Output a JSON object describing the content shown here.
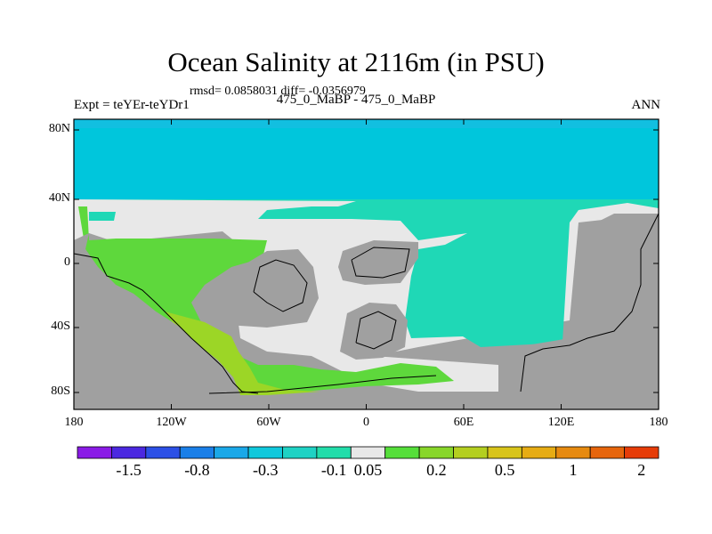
{
  "title": "Ocean Salinity at 2116m (in PSU)",
  "stats": "rmsd= 0.0858031 diff= -0.0356979",
  "experiment": "Expt = teYEr-teYDr1",
  "period": "475_0_MaBP - 475_0_MaBP",
  "season": "ANN",
  "y_ticks": [
    "80N",
    "40N",
    "0",
    "40S",
    "80S"
  ],
  "x_ticks": [
    "180",
    "120W",
    "60W",
    "0",
    "60E",
    "120E",
    "180"
  ],
  "legend": {
    "labels": [
      "-1.5",
      "-0.8",
      "-0.3",
      "-0.1",
      "0.05",
      "0.2",
      "0.5",
      "1",
      "2"
    ],
    "colors": [
      "#8a1be6",
      "#4b28e0",
      "#2c50e6",
      "#1a7fe8",
      "#1aa8e8",
      "#10c8dc",
      "#1fd2c4",
      "#22ddaa",
      "#e8e8e8",
      "#55de3a",
      "#88d62a",
      "#b4cf20",
      "#d8c41a",
      "#e6ac14",
      "#e68a10",
      "#e6650c",
      "#e63c08"
    ]
  },
  "map": {
    "land_color": "#a0a0a0",
    "north_band_color": "#00c6dc",
    "region_colors": {
      "neutral": "#e8e8e8",
      "negative": "#1fd8b6",
      "positive_green": "#5ed83c",
      "positive_lime": "#9cd626"
    }
  }
}
